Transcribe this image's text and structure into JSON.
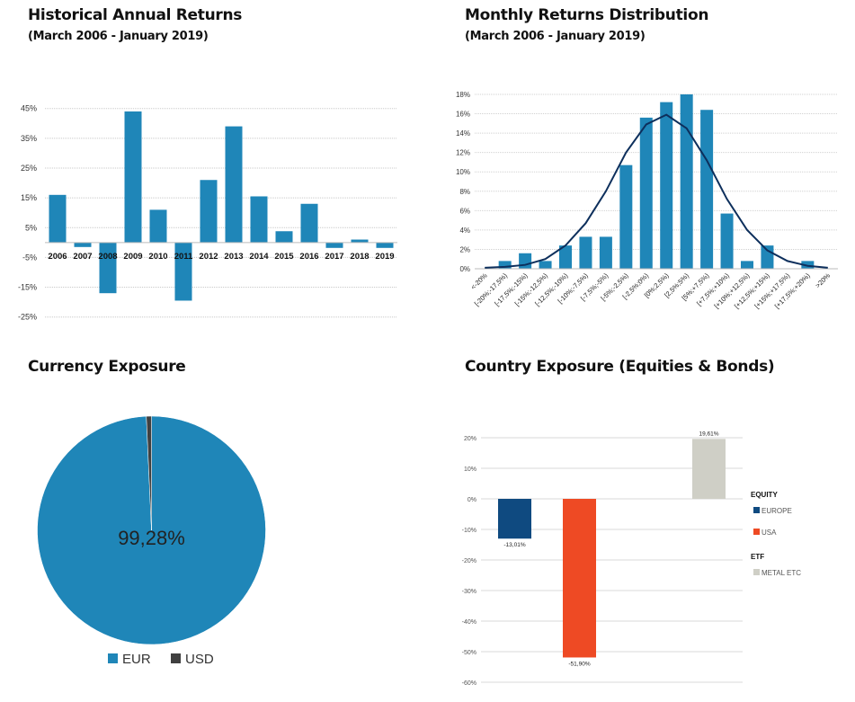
{
  "chart_data": [
    {
      "type": "bar",
      "title": "Historical Annual Returns",
      "subtitle": "(March 2006 - January 2019)",
      "categories": [
        "2006",
        "2007",
        "2008",
        "2009",
        "2010",
        "2011",
        "2012",
        "2013",
        "2014",
        "2015",
        "2016",
        "2017",
        "2018",
        "2019"
      ],
      "values": [
        16,
        -1.5,
        -17,
        44,
        11,
        -19.5,
        21,
        39,
        15.5,
        3.8,
        13,
        -1.8,
        1,
        -1.8
      ],
      "yticks": [
        "45%",
        "35%",
        "25%",
        "15%",
        "5%",
        "-5%",
        "-15%",
        "-25%"
      ],
      "ytick_values": [
        45,
        35,
        25,
        15,
        5,
        -5,
        -15,
        -25
      ],
      "ylim": [
        -25,
        45
      ],
      "grid": true,
      "color": "#1f86b8"
    },
    {
      "type": "bar",
      "title": "Monthly Returns Distribution",
      "subtitle": "(March 2006 - January 2019)",
      "categories": [
        "<-20%",
        "[-20%;-17,5%)",
        "[-17,5%;-15%)",
        "[-15%;-12,5%)",
        "[-12,5%;-10%)",
        "[-10%;-7,5%)",
        "[-7,5%;-5%)",
        "[-5%;-2,5%)",
        "[-2,5%;0%)",
        "[0%;2,5%)",
        "[2,5%;5%)",
        "[5%;+7,5%)",
        "[+7,5%;+10%)",
        "[+10%;+12,5%)",
        "[+12,5%;+15%)",
        "[+15%;+17,5%)",
        "[+17,5%;+20%)",
        ">20%"
      ],
      "values": [
        0,
        0.8,
        1.6,
        0.8,
        2.4,
        3.3,
        3.3,
        10.7,
        15.6,
        17.2,
        18.0,
        16.4,
        5.7,
        0.8,
        2.4,
        0,
        0.8,
        0
      ],
      "line": [
        0.1,
        0.2,
        0.4,
        1.0,
        2.4,
        4.7,
        8.0,
        12.0,
        14.9,
        15.9,
        14.5,
        11.2,
        7.2,
        4.0,
        1.9,
        0.8,
        0.3,
        0.1
      ],
      "yticks": [
        "18%",
        "16%",
        "14%",
        "12%",
        "10%",
        "8%",
        "6%",
        "4%",
        "2%",
        "0%"
      ],
      "ytick_values": [
        18,
        16,
        14,
        12,
        10,
        8,
        6,
        4,
        2,
        0
      ],
      "ylim": [
        0,
        18
      ],
      "grid": true,
      "color": "#1f86b8",
      "line_color": "#0d2f5c"
    },
    {
      "type": "pie",
      "title": "Currency Exposure",
      "slices": [
        {
          "name": "EUR",
          "value": 99.28,
          "color": "#1f86b8"
        },
        {
          "name": "USD",
          "value": 0.72,
          "color": "#404040"
        }
      ],
      "center_label": "99,28%",
      "legend": "bottom"
    },
    {
      "type": "bar",
      "title": "Country Exposure (Equities & Bonds)",
      "series": [
        {
          "name": "EUROPE",
          "group": "EQUITY",
          "value": -13.01,
          "label": "-13,01%",
          "color": "#0f4a80"
        },
        {
          "name": "USA",
          "group": "EQUITY",
          "value": -51.9,
          "label": "-51,90%",
          "color": "#ee4a24"
        },
        {
          "name": "METAL ETC",
          "group": "ETF",
          "value": 19.61,
          "label": "19,61%",
          "color": "#cfcfc6"
        }
      ],
      "legend_groups": [
        "EQUITY",
        "ETF"
      ],
      "yticks": [
        "20%",
        "10%",
        "0%",
        "-10%",
        "-20%",
        "-30%",
        "-40%",
        "-50%",
        "-60%"
      ],
      "ytick_values": [
        20,
        10,
        0,
        -10,
        -20,
        -30,
        -40,
        -50,
        -60
      ],
      "ylim": [
        -60,
        20
      ],
      "grid": true,
      "legend": "right"
    }
  ]
}
